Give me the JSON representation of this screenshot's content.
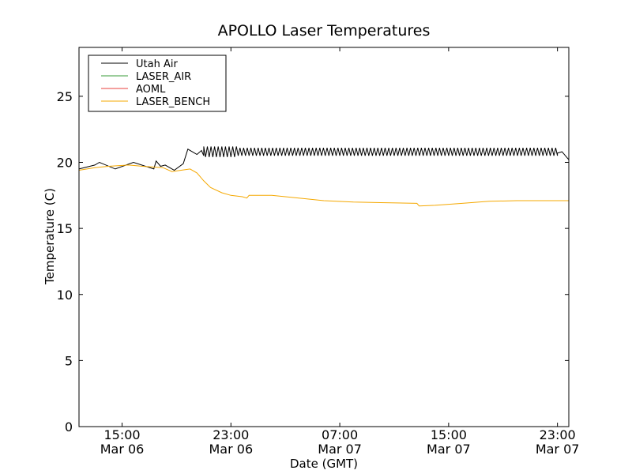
{
  "chart_data": {
    "type": "line",
    "title": "APOLLO Laser Temperatures",
    "xlabel": "Date (GMT)",
    "ylabel": "Temperature (C)",
    "xlim": [
      "2013-03-06T11:50",
      "2013-03-07T23:50"
    ],
    "ylim": [
      0,
      28.7
    ],
    "grid": false,
    "legend_position": "top-left",
    "y_ticks": [
      0,
      5,
      10,
      15,
      20,
      25
    ],
    "x_ticks": [
      {
        "at": "2013-03-06T15:00",
        "time": "15:00",
        "date": "Mar 06"
      },
      {
        "at": "2013-03-06T23:00",
        "time": "23:00",
        "date": "Mar 06"
      },
      {
        "at": "2013-03-07T07:00",
        "time": "07:00",
        "date": "Mar 07"
      },
      {
        "at": "2013-03-07T15:00",
        "time": "15:00",
        "date": "Mar 07"
      },
      {
        "at": "2013-03-07T23:00",
        "time": "23:00",
        "date": "Mar 07"
      }
    ],
    "series": [
      {
        "name": "Utah Air",
        "color": "#000000",
        "note_oscillation": "rapid oscillation approx 20.5-21.1 after 20:30 Mar 06",
        "points": [
          [
            "2013-03-06T11:50",
            19.5
          ],
          [
            "2013-03-06T13:00",
            19.8
          ],
          [
            "2013-03-06T13:20",
            20.0
          ],
          [
            "2013-03-06T14:30",
            19.5
          ],
          [
            "2013-03-06T15:50",
            20.0
          ],
          [
            "2013-03-06T17:20",
            19.5
          ],
          [
            "2013-03-06T17:30",
            20.1
          ],
          [
            "2013-03-06T17:50",
            19.7
          ],
          [
            "2013-03-06T18:10",
            19.8
          ],
          [
            "2013-03-06T18:50",
            19.4
          ],
          [
            "2013-03-06T19:30",
            19.9
          ],
          [
            "2013-03-06T19:50",
            21.0
          ],
          [
            "2013-03-06T20:30",
            20.6
          ],
          [
            "2013-03-06T20:50",
            20.9
          ],
          [
            "2013-03-06T21:00",
            20.5
          ],
          [
            "2013-03-07T23:00",
            20.7
          ],
          [
            "2013-03-07T23:20",
            20.8
          ],
          [
            "2013-03-07T23:50",
            20.2
          ]
        ]
      },
      {
        "name": "LASER_AIR",
        "color": "#3a9b3a",
        "points": []
      },
      {
        "name": "AOML",
        "color": "#e8413c",
        "points": []
      },
      {
        "name": "LASER_BENCH",
        "color": "#f5a800",
        "points": [
          [
            "2013-03-06T11:50",
            19.4
          ],
          [
            "2013-03-06T13:00",
            19.6
          ],
          [
            "2013-03-06T14:00",
            19.7
          ],
          [
            "2013-03-06T15:30",
            19.8
          ],
          [
            "2013-03-06T16:30",
            19.7
          ],
          [
            "2013-03-06T18:00",
            19.6
          ],
          [
            "2013-03-06T18:40",
            19.3
          ],
          [
            "2013-03-06T19:20",
            19.4
          ],
          [
            "2013-03-06T20:00",
            19.5
          ],
          [
            "2013-03-06T20:30",
            19.2
          ],
          [
            "2013-03-06T21:00",
            18.6
          ],
          [
            "2013-03-06T21:30",
            18.1
          ],
          [
            "2013-03-06T22:20",
            17.7
          ],
          [
            "2013-03-06T23:00",
            17.5
          ],
          [
            "2013-03-06T23:50",
            17.4
          ],
          [
            "2013-03-07T00:10",
            17.3
          ],
          [
            "2013-03-07T00:20",
            17.5
          ],
          [
            "2013-03-07T02:00",
            17.5
          ],
          [
            "2013-03-07T04:00",
            17.3
          ],
          [
            "2013-03-07T05:50",
            17.1
          ],
          [
            "2013-03-07T08:00",
            17.0
          ],
          [
            "2013-03-07T10:00",
            16.95
          ],
          [
            "2013-03-07T12:40",
            16.9
          ],
          [
            "2013-03-07T12:50",
            16.7
          ],
          [
            "2013-03-07T14:00",
            16.75
          ],
          [
            "2013-03-07T16:00",
            16.9
          ],
          [
            "2013-03-07T18:00",
            17.05
          ],
          [
            "2013-03-07T20:00",
            17.1
          ],
          [
            "2013-03-07T23:50",
            17.1
          ]
        ]
      }
    ]
  }
}
